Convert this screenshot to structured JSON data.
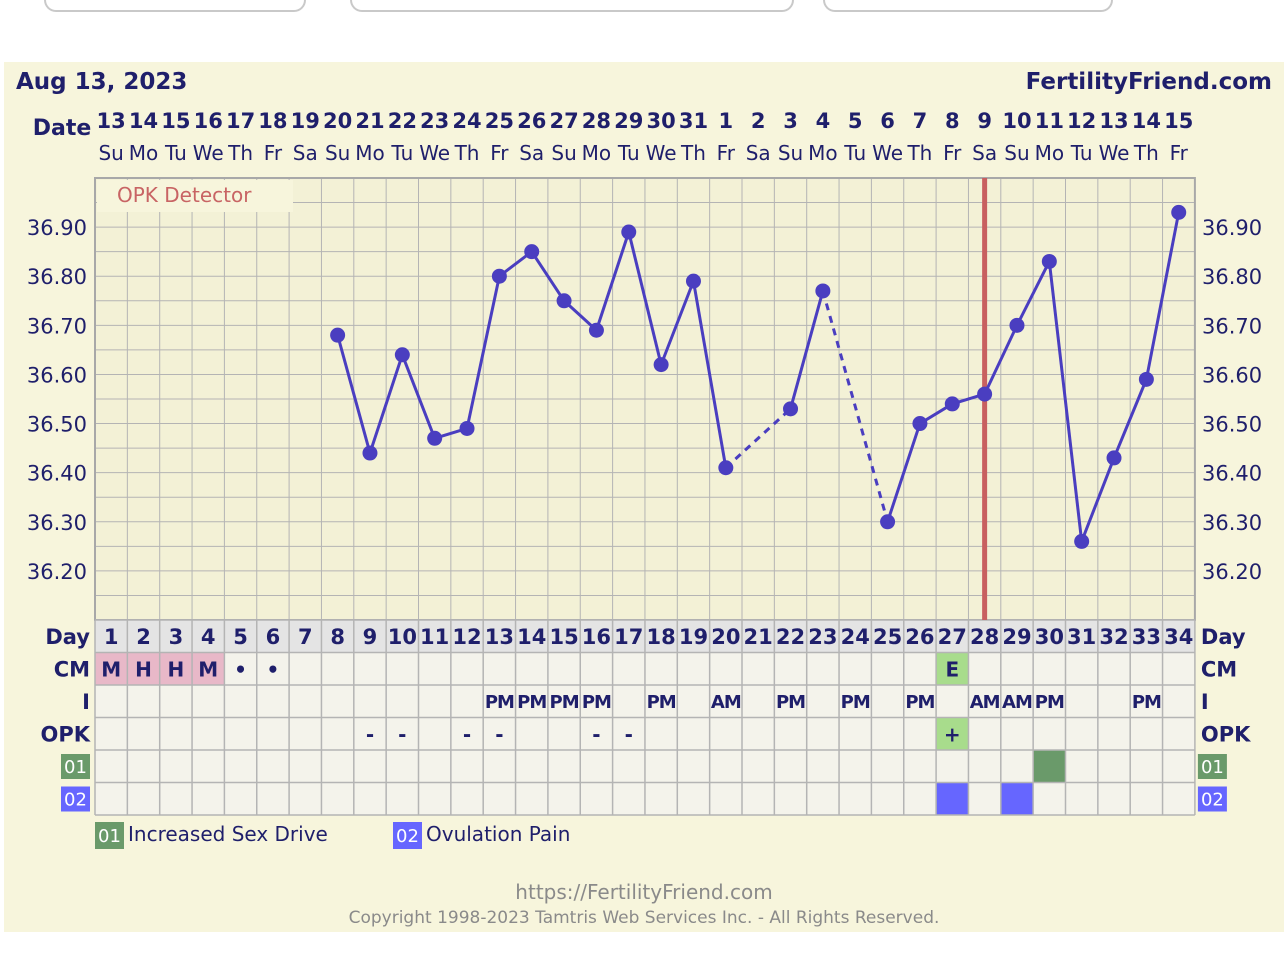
{
  "header": {
    "date": "Aug 13, 2023",
    "site": "FertilityFriend.com"
  },
  "footer": {
    "url": "https://FertilityFriend.com",
    "copyright": "Copyright 1998-2023 Tamtris Web Services Inc. - All Rights Reserved."
  },
  "chart_data": {
    "type": "line",
    "title": "Aug 13, 2023",
    "x_label": "Date",
    "dates": [
      "13",
      "14",
      "15",
      "16",
      "17",
      "18",
      "19",
      "20",
      "21",
      "22",
      "23",
      "24",
      "25",
      "26",
      "27",
      "28",
      "29",
      "30",
      "31",
      "1",
      "2",
      "3",
      "4",
      "5",
      "6",
      "7",
      "8",
      "9",
      "10",
      "11",
      "12",
      "13",
      "14",
      "15"
    ],
    "weekdays": [
      "Su",
      "Mo",
      "Tu",
      "We",
      "Th",
      "Fr",
      "Sa",
      "Su",
      "Mo",
      "Tu",
      "We",
      "Th",
      "Fr",
      "Sa",
      "Su",
      "Mo",
      "Tu",
      "We",
      "Th",
      "Fr",
      "Sa",
      "Su",
      "Mo",
      "Tu",
      "We",
      "Th",
      "Fr",
      "Sa",
      "Su",
      "Mo",
      "Tu",
      "We",
      "Th",
      "Fr"
    ],
    "cycle_days": [
      "1",
      "2",
      "3",
      "4",
      "5",
      "6",
      "7",
      "8",
      "9",
      "10",
      "11",
      "12",
      "13",
      "14",
      "15",
      "16",
      "17",
      "18",
      "19",
      "20",
      "21",
      "22",
      "23",
      "24",
      "25",
      "26",
      "27",
      "28",
      "29",
      "30",
      "31",
      "32",
      "33",
      "34"
    ],
    "day_label": "Day",
    "temperature_ticks": [
      "36.90",
      "36.80",
      "36.70",
      "36.60",
      "36.50",
      "36.40",
      "36.30",
      "36.20"
    ],
    "temperature_range": [
      36.1,
      37.0
    ],
    "temperatures": [
      null,
      null,
      null,
      null,
      null,
      null,
      null,
      36.68,
      36.44,
      36.64,
      36.47,
      36.49,
      36.8,
      36.85,
      36.75,
      36.69,
      36.89,
      36.62,
      36.79,
      36.41,
      null,
      36.53,
      36.77,
      null,
      36.3,
      36.5,
      36.54,
      36.56,
      36.7,
      36.83,
      36.26,
      36.43,
      36.59,
      36.93
    ],
    "ovulation_day": 28,
    "detector_label": "OPK Detector",
    "rows": {
      "cm": {
        "label": "CM",
        "values": [
          "M",
          "H",
          "H",
          "M",
          "•",
          "•",
          "",
          "",
          "",
          "",
          "",
          "",
          "",
          "",
          "",
          "",
          "",
          "",
          "",
          "",
          "",
          "",
          "",
          "",
          "",
          "",
          "E",
          "",
          "",
          "",
          "",
          "",
          "",
          ""
        ]
      },
      "intercourse": {
        "label": "I",
        "values": [
          "",
          "",
          "",
          "",
          "",
          "",
          "",
          "",
          "",
          "",
          "",
          "",
          "PM",
          "PM",
          "PM",
          "PM",
          "",
          "PM",
          "",
          "AM",
          "",
          "PM",
          "",
          "PM",
          "",
          "PM",
          "",
          "AM",
          "AM",
          "PM",
          "",
          "",
          "PM",
          ""
        ]
      },
      "opk": {
        "label": "OPK",
        "values": [
          "",
          "",
          "",
          "",
          "",
          "",
          "",
          "",
          "-",
          "-",
          "",
          "-",
          "-",
          "",
          "",
          "-",
          "-",
          "",
          "",
          "",
          "",
          "",
          "",
          "",
          "",
          "",
          "+",
          "",
          "",
          "",
          "",
          "",
          "",
          ""
        ]
      },
      "custom01": {
        "label": "01",
        "marked_days": [
          30
        ]
      },
      "custom02": {
        "label": "02",
        "marked_days": [
          27,
          29
        ]
      }
    },
    "legend": [
      {
        "code": "01",
        "label": "Increased Sex Drive",
        "color": "#6a9a6a"
      },
      {
        "code": "02",
        "label": "Ovulation Pain",
        "color": "#6666ff"
      }
    ],
    "colors": {
      "line": "#4a3ec0",
      "ovulation": "#c86060",
      "cm_pink": "#e8b8c8",
      "cm_green": "#a8dc8c",
      "detector_text": "#c86464",
      "label_navy": "#1f1f6b"
    }
  }
}
